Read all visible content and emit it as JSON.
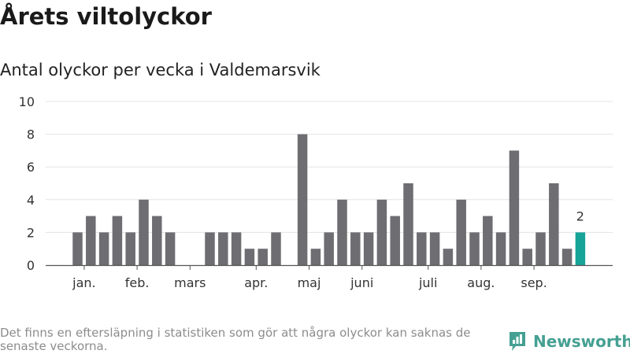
{
  "title": "Årets viltolyckor",
  "subtitle": "Antal olyckor per vecka i Valdemarsvik",
  "footnote": "Det finns en eftersläpning i statistiken som gör att några olyckor kan saknas de senaste veckorna.",
  "brand": {
    "name": "Newsworthy",
    "icon": "newsworthy-logo-icon",
    "color": "#45a092"
  },
  "chart_data": {
    "type": "bar",
    "title": "",
    "xlabel": "",
    "ylabel": "",
    "ylim": [
      0,
      10
    ],
    "yticks": [
      0,
      2,
      4,
      6,
      8,
      10
    ],
    "grid": true,
    "bar_color": "#6e6d72",
    "highlight_color": "#17a398",
    "weeks": [
      1,
      2,
      3,
      4,
      5,
      6,
      7,
      8,
      9,
      10,
      11,
      12,
      13,
      14,
      15,
      16,
      17,
      18,
      19,
      20,
      21,
      22,
      23,
      24,
      25,
      26,
      27,
      28,
      29,
      30,
      31,
      32,
      33,
      34,
      35,
      36,
      37,
      38,
      39,
      40
    ],
    "values": [
      2,
      3,
      2,
      3,
      2,
      4,
      3,
      2,
      0,
      0,
      2,
      2,
      2,
      1,
      1,
      2,
      0,
      8,
      1,
      2,
      4,
      2,
      2,
      4,
      3,
      5,
      2,
      2,
      1,
      4,
      2,
      3,
      2,
      7,
      1,
      2,
      5,
      1,
      2,
      null
    ],
    "highlight_index": 38,
    "highlight_label": "2",
    "month_labels": [
      {
        "label": "jan.",
        "week": 1.5
      },
      {
        "label": "feb.",
        "week": 5.5
      },
      {
        "label": "mars",
        "week": 9.5
      },
      {
        "label": "apr.",
        "week": 14.5
      },
      {
        "label": "maj",
        "week": 18.5
      },
      {
        "label": "juni",
        "week": 22.5
      },
      {
        "label": "juli",
        "week": 27.5
      },
      {
        "label": "aug.",
        "week": 31.5
      },
      {
        "label": "sep.",
        "week": 35.5
      }
    ]
  }
}
